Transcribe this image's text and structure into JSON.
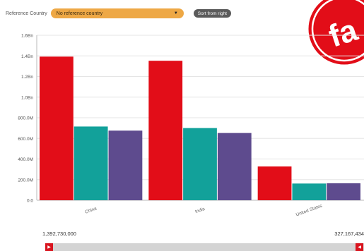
{
  "controls": {
    "reference_label": "Reference Country",
    "reference_value": "No reference country",
    "sort_label": "Sort from right"
  },
  "brand": {
    "logo_text": "fa",
    "color": "#e20d18"
  },
  "colors": {
    "series": [
      "#e20d18",
      "#12a19a",
      "#5e4b8e"
    ]
  },
  "range": {
    "min_label": "1,392,730,000",
    "max_label": "327,167,434"
  },
  "chart_data": {
    "type": "bar",
    "categories": [
      "China",
      "India",
      "United States"
    ],
    "series": [
      {
        "values": [
          1392730000,
          1352620000,
          327170000
        ]
      },
      {
        "values": [
          715000000,
          700000000,
          162000000
        ]
      },
      {
        "values": [
          675000000,
          652000000,
          165000000
        ]
      }
    ],
    "ylim": [
      0,
      1600000000
    ],
    "yticks": [
      0,
      200000000,
      400000000,
      600000000,
      800000000,
      1000000000,
      1200000000,
      1400000000,
      1600000000
    ],
    "ytick_labels": [
      "0.0",
      "200.0M",
      "400.0M",
      "600.0M",
      "800.0M",
      "1.0Bn",
      "1.2Bn",
      "1.4Bn",
      "1.6Bn"
    ],
    "grid": true,
    "legend": false
  }
}
